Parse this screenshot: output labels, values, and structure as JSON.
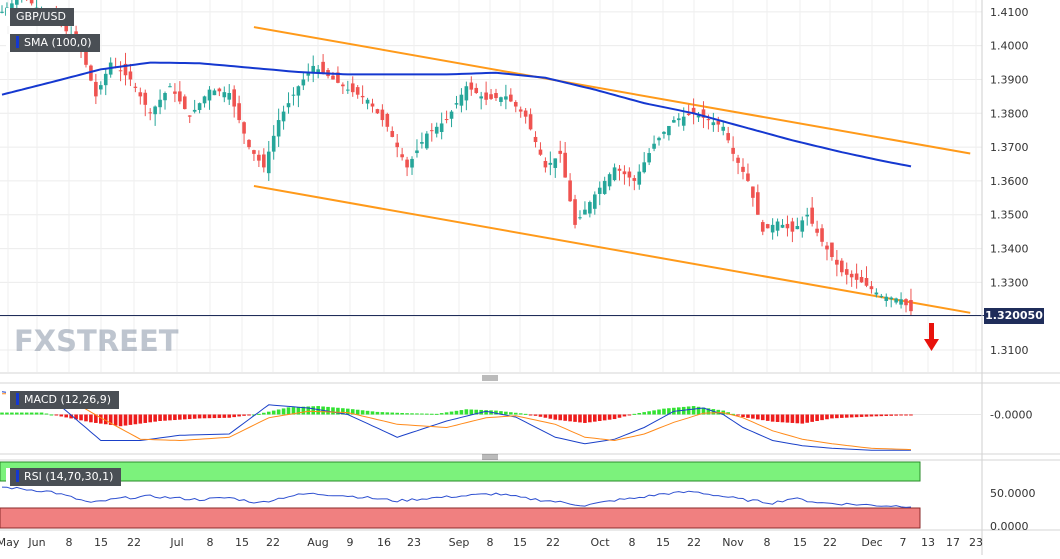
{
  "symbol": "GBP/USD",
  "overlay_label": "SMA (100,0)",
  "macd_label": "MACD (12,26,9)",
  "rsi_label": "RSI (14,70,30,1)",
  "last_price": "1.320050",
  "watermark": "FXSTREET",
  "colors": {
    "up": "#26a69a",
    "down": "#ef5350",
    "sma": "#1538d0",
    "channel": "#ff9a1a",
    "arrow": "#e8120c",
    "macd_line": "#1a40c8",
    "signal_line": "#ff8a1a",
    "rsi_line": "#2d4fd0"
  },
  "chart_data": [
    {
      "type": "candlestick",
      "title": "GBP/USD",
      "y_ticks": [
        "1.4100",
        "1.4000",
        "1.3900",
        "1.3800",
        "1.3700",
        "1.3600",
        "1.3500",
        "1.3400",
        "1.3300",
        "1.3200",
        "1.3100"
      ],
      "y_range": [
        1.3035,
        1.4135
      ],
      "x_ticks": [
        "May",
        "Jun",
        "8",
        "15",
        "22",
        "Jul",
        "8",
        "15",
        "22",
        "Aug",
        "9",
        "16",
        "23",
        "Sep",
        "8",
        "15",
        "22",
        "Oct",
        "8",
        "15",
        "22",
        "Nov",
        "8",
        "15",
        "22",
        "Dec",
        "7",
        "13",
        "17",
        "23"
      ],
      "anchors": [
        [
          0,
          1.41
        ],
        [
          4,
          1.415
        ],
        [
          8,
          1.41
        ],
        [
          12,
          1.406
        ],
        [
          16,
          1.399
        ],
        [
          19,
          1.385
        ],
        [
          22,
          1.395
        ],
        [
          26,
          1.39
        ],
        [
          30,
          1.38
        ],
        [
          34,
          1.388
        ],
        [
          38,
          1.379
        ],
        [
          42,
          1.387
        ],
        [
          46,
          1.386
        ],
        [
          50,
          1.37
        ],
        [
          53,
          1.364
        ],
        [
          56,
          1.378
        ],
        [
          60,
          1.388
        ],
        [
          63,
          1.394
        ],
        [
          67,
          1.39
        ],
        [
          70,
          1.387
        ],
        [
          74,
          1.384
        ],
        [
          78,
          1.376
        ],
        [
          82,
          1.364
        ],
        [
          86,
          1.374
        ],
        [
          90,
          1.378
        ],
        [
          94,
          1.388
        ],
        [
          98,
          1.384
        ],
        [
          102,
          1.385
        ],
        [
          106,
          1.379
        ],
        [
          110,
          1.364
        ],
        [
          113,
          1.368
        ],
        [
          116,
          1.347
        ],
        [
          120,
          1.356
        ],
        [
          124,
          1.364
        ],
        [
          128,
          1.36
        ],
        [
          132,
          1.371
        ],
        [
          136,
          1.378
        ],
        [
          140,
          1.38
        ],
        [
          143,
          1.378
        ],
        [
          146,
          1.376
        ],
        [
          148,
          1.368
        ],
        [
          151,
          1.36
        ],
        [
          154,
          1.345
        ],
        [
          157,
          1.348
        ],
        [
          160,
          1.345
        ],
        [
          163,
          1.35
        ],
        [
          166,
          1.342
        ],
        [
          170,
          1.333
        ],
        [
          174,
          1.33
        ],
        [
          178,
          1.326
        ],
        [
          182,
          1.325
        ],
        [
          184,
          1.3215
        ]
      ],
      "sma_anchors": [
        [
          0,
          1.3855
        ],
        [
          10,
          1.3892
        ],
        [
          20,
          1.393
        ],
        [
          30,
          1.395
        ],
        [
          40,
          1.3948
        ],
        [
          50,
          1.3935
        ],
        [
          60,
          1.3922
        ],
        [
          70,
          1.3915
        ],
        [
          80,
          1.3915
        ],
        [
          90,
          1.3915
        ],
        [
          100,
          1.392
        ],
        [
          110,
          1.3905
        ],
        [
          120,
          1.387
        ],
        [
          130,
          1.383
        ],
        [
          140,
          1.38
        ],
        [
          150,
          1.376
        ],
        [
          160,
          1.372
        ],
        [
          170,
          1.3685
        ],
        [
          178,
          1.366
        ],
        [
          184,
          1.3643
        ]
      ],
      "channel": {
        "upper": [
          [
            51,
            1.4055
          ],
          [
            196,
            1.3681
          ]
        ],
        "lower": [
          [
            51,
            1.3585
          ],
          [
            196,
            1.321
          ]
        ]
      }
    },
    {
      "type": "bar",
      "title": "MACD (12,26,9)",
      "y_ticks": [
        "-0.0000"
      ],
      "histogram_anchors": [
        [
          0,
          0.0003
        ],
        [
          8,
          0.0003
        ],
        [
          18,
          -0.0012
        ],
        [
          24,
          -0.0018
        ],
        [
          32,
          -0.001
        ],
        [
          40,
          -0.0006
        ],
        [
          46,
          -0.0005
        ],
        [
          52,
          0.0001
        ],
        [
          58,
          0.0011
        ],
        [
          64,
          0.0013
        ],
        [
          70,
          0.0009
        ],
        [
          76,
          0.0004
        ],
        [
          82,
          0.0002
        ],
        [
          88,
          0.0001
        ],
        [
          94,
          0.0008
        ],
        [
          100,
          0.0006
        ],
        [
          106,
          0.0001
        ],
        [
          112,
          -0.0008
        ],
        [
          118,
          -0.0013
        ],
        [
          124,
          -0.0007
        ],
        [
          128,
          0.0001
        ],
        [
          134,
          0.0009
        ],
        [
          140,
          0.0013
        ],
        [
          146,
          0.0006
        ],
        [
          150,
          -0.0004
        ],
        [
          156,
          -0.0011
        ],
        [
          162,
          -0.0014
        ],
        [
          168,
          -0.0006
        ],
        [
          176,
          -0.0003
        ],
        [
          184,
          -0.0001
        ]
      ],
      "macd_anchors": [
        [
          0,
          0.0035
        ],
        [
          10,
          0.0025
        ],
        [
          20,
          -0.004
        ],
        [
          28,
          -0.004
        ],
        [
          36,
          -0.0032
        ],
        [
          46,
          -0.003
        ],
        [
          54,
          0.0015
        ],
        [
          62,
          0.001
        ],
        [
          70,
          0.0
        ],
        [
          80,
          -0.0035
        ],
        [
          90,
          -0.001
        ],
        [
          98,
          0.0005
        ],
        [
          104,
          -0.0004
        ],
        [
          112,
          -0.0035
        ],
        [
          118,
          -0.0045
        ],
        [
          124,
          -0.0038
        ],
        [
          130,
          -0.002
        ],
        [
          136,
          0.0005
        ],
        [
          142,
          0.001
        ],
        [
          146,
          0.0
        ],
        [
          150,
          -0.002
        ],
        [
          156,
          -0.004
        ],
        [
          162,
          -0.0048
        ],
        [
          168,
          -0.0052
        ],
        [
          176,
          -0.0055
        ],
        [
          184,
          -0.0055
        ]
      ],
      "signal_anchors": [
        [
          0,
          0.0032
        ],
        [
          12,
          0.003
        ],
        [
          20,
          -0.0005
        ],
        [
          28,
          -0.0038
        ],
        [
          36,
          -0.004
        ],
        [
          46,
          -0.0035
        ],
        [
          54,
          -0.0005
        ],
        [
          62,
          0.0005
        ],
        [
          70,
          0.0003
        ],
        [
          80,
          -0.0015
        ],
        [
          90,
          -0.002
        ],
        [
          98,
          -0.0005
        ],
        [
          104,
          -0.0002
        ],
        [
          112,
          -0.0015
        ],
        [
          118,
          -0.0035
        ],
        [
          124,
          -0.004
        ],
        [
          130,
          -0.003
        ],
        [
          136,
          -0.0012
        ],
        [
          142,
          0.0002
        ],
        [
          146,
          0.0003
        ],
        [
          150,
          -0.0005
        ],
        [
          156,
          -0.0025
        ],
        [
          162,
          -0.0038
        ],
        [
          168,
          -0.0045
        ],
        [
          176,
          -0.0052
        ],
        [
          184,
          -0.0054
        ]
      ]
    },
    {
      "type": "line",
      "title": "RSI (14,70,30,1)",
      "y_ticks": [
        "50.0000",
        "0.0000"
      ],
      "rsi_anchors": [
        [
          0,
          62
        ],
        [
          10,
          55
        ],
        [
          18,
          38
        ],
        [
          24,
          45
        ],
        [
          30,
          48
        ],
        [
          40,
          43
        ],
        [
          46,
          46
        ],
        [
          52,
          38
        ],
        [
          58,
          48
        ],
        [
          62,
          52
        ],
        [
          68,
          50
        ],
        [
          74,
          46
        ],
        [
          80,
          41
        ],
        [
          86,
          45
        ],
        [
          94,
          49
        ],
        [
          100,
          52
        ],
        [
          106,
          45
        ],
        [
          112,
          40
        ],
        [
          118,
          34
        ],
        [
          124,
          42
        ],
        [
          128,
          45
        ],
        [
          134,
          52
        ],
        [
          140,
          55
        ],
        [
          146,
          48
        ],
        [
          150,
          43
        ],
        [
          156,
          38
        ],
        [
          160,
          45
        ],
        [
          166,
          38
        ],
        [
          172,
          36
        ],
        [
          178,
          34
        ],
        [
          184,
          33
        ]
      ]
    }
  ]
}
